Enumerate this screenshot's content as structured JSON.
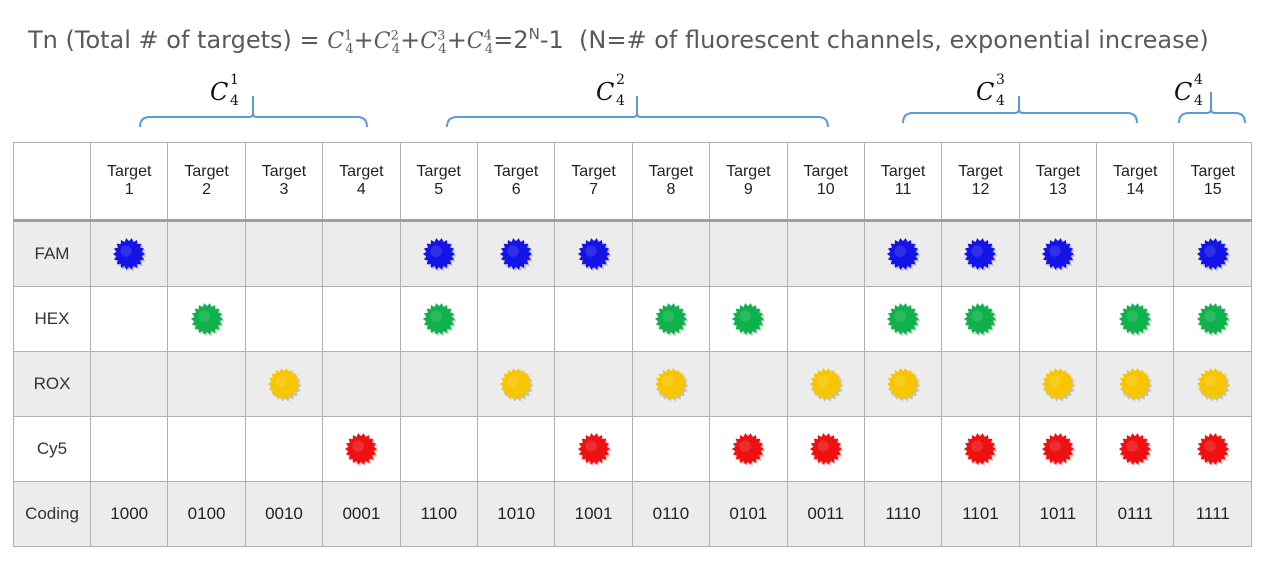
{
  "formula": {
    "prefix": "Tn (Total # of targets) = ",
    "c": "C",
    "n": "4",
    "plus": "+",
    "ks": [
      "1",
      "2",
      "3",
      "4"
    ],
    "equals_result": "=2",
    "exp": "N",
    "minus": "-1",
    "suffix": "  (N=# of fluorescent channels, exponential increase)"
  },
  "combination_groups": [
    {
      "letter": "C",
      "sup": "1",
      "sub": "4",
      "targets": [
        "1",
        "2",
        "3",
        "4"
      ]
    },
    {
      "letter": "C",
      "sup": "2",
      "sub": "4",
      "targets": [
        "5",
        "6",
        "7",
        "8",
        "9",
        "10"
      ]
    },
    {
      "letter": "C",
      "sup": "3",
      "sub": "4",
      "targets": [
        "11",
        "12",
        "13",
        "14"
      ]
    },
    {
      "letter": "C",
      "sup": "4",
      "sub": "4",
      "targets": [
        "15"
      ]
    }
  ],
  "colors": {
    "FAM": "#1414e6",
    "HEX": "#0fb14c",
    "ROX": "#f7c600",
    "Cy5": "#ee1111",
    "bracket": "#5b9bd5",
    "shade": "#ececec"
  },
  "table": {
    "target_word": "Target",
    "targets": [
      "1",
      "2",
      "3",
      "4",
      "5",
      "6",
      "7",
      "8",
      "9",
      "10",
      "11",
      "12",
      "13",
      "14",
      "15"
    ],
    "channels": [
      {
        "name": "FAM",
        "icon": "starburst-blue",
        "marks": [
          1,
          0,
          0,
          0,
          1,
          1,
          1,
          0,
          0,
          0,
          1,
          1,
          1,
          0,
          1
        ]
      },
      {
        "name": "HEX",
        "icon": "starburst-green",
        "marks": [
          0,
          1,
          0,
          0,
          1,
          0,
          0,
          1,
          1,
          0,
          1,
          1,
          0,
          1,
          1
        ]
      },
      {
        "name": "ROX",
        "icon": "starburst-yellow",
        "marks": [
          0,
          0,
          1,
          0,
          0,
          1,
          0,
          1,
          0,
          1,
          1,
          0,
          1,
          1,
          1
        ]
      },
      {
        "name": "Cy5",
        "icon": "starburst-red",
        "marks": [
          0,
          0,
          0,
          1,
          0,
          0,
          1,
          0,
          1,
          1,
          0,
          1,
          1,
          1,
          1
        ]
      }
    ],
    "coding_label": "Coding",
    "codes": [
      "1000",
      "0100",
      "0010",
      "0001",
      "1100",
      "1010",
      "1001",
      "0110",
      "0101",
      "0011",
      "1110",
      "1101",
      "1011",
      "0111",
      "1111"
    ]
  }
}
